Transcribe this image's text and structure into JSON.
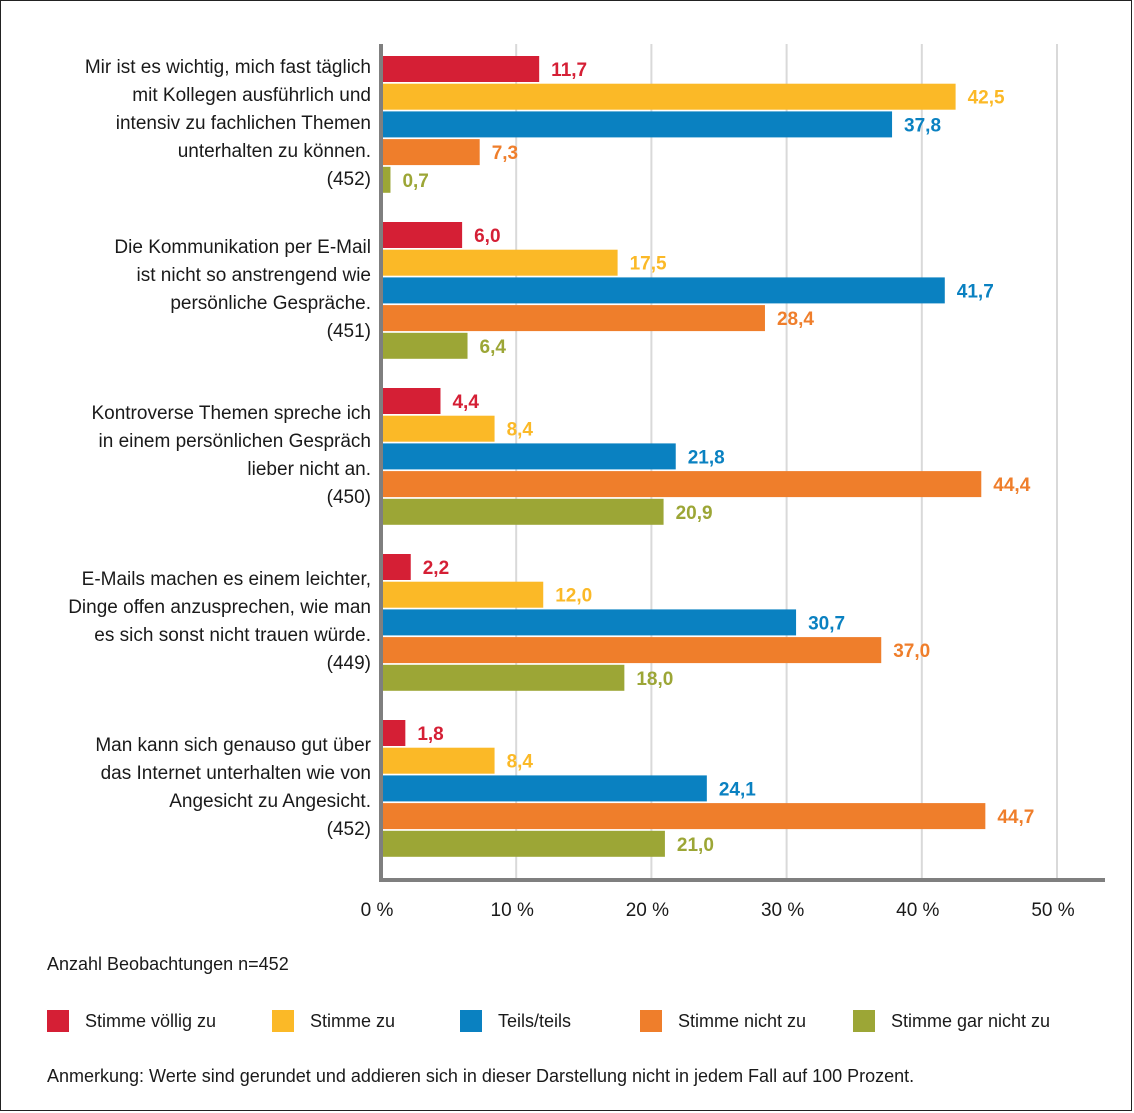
{
  "chart_data": {
    "type": "bar",
    "orientation": "horizontal",
    "categories": [
      {
        "text": "Mir ist es wichtig, mich fast täglich\nmit Kollegen ausführlich und\nintensiv zu fachlichen Themen\nunterhalten zu können.",
        "n": "(452)"
      },
      {
        "text": "Die Kommunikation per E-Mail\nist nicht so anstrengend wie\npersönliche Gespräche.",
        "n": "(451)"
      },
      {
        "text": "Kontroverse Themen spreche ich\nin einem persönlichen Gespräch\nlieber nicht an.",
        "n": "(450)"
      },
      {
        "text": "E-Mails machen es einem leichter,\nDinge offen anzusprechen, wie man\nes sich sonst nicht trauen würde.",
        "n": "(449)"
      },
      {
        "text": "Man kann sich genauso gut über\ndas Internet unterhalten wie von\nAngesicht zu Angesicht.",
        "n": "(452)"
      }
    ],
    "series": [
      {
        "name": "Stimme völlig zu",
        "color": "#d51f35",
        "values": [
          11.7,
          6.0,
          4.4,
          2.2,
          1.8
        ],
        "labels": [
          "11,7",
          "6,0",
          "4,4",
          "2,2",
          "1,8"
        ]
      },
      {
        "name": "Stimme zu",
        "color": "#fbb927",
        "values": [
          42.5,
          17.5,
          8.4,
          12.0,
          8.4
        ],
        "labels": [
          "42,5",
          "17,5",
          "8,4",
          "12,0",
          "8,4"
        ]
      },
      {
        "name": "Teils/teils",
        "color": "#0a81c1",
        "values": [
          37.8,
          41.7,
          21.8,
          30.7,
          24.1
        ],
        "labels": [
          "37,8",
          "41,7",
          "21,8",
          "30,7",
          "24,1"
        ]
      },
      {
        "name": "Stimme nicht zu",
        "color": "#ef7e2b",
        "values": [
          7.3,
          28.4,
          44.4,
          37.0,
          44.7
        ],
        "labels": [
          "7,3",
          "28,4",
          "44,4",
          "37,0",
          "44,7"
        ]
      },
      {
        "name": "Stimme gar nicht zu",
        "color": "#9ca636",
        "values": [
          0.7,
          6.4,
          20.9,
          18.0,
          21.0
        ],
        "labels": [
          "0,7",
          "6,4",
          "20,9",
          "18,0",
          "21,0"
        ]
      }
    ],
    "xlim": [
      0,
      53
    ],
    "xticks": [
      0,
      10,
      20,
      30,
      40,
      50
    ],
    "xtick_labels": [
      "0 %",
      "10 %",
      "20 %",
      "30 %",
      "40 %",
      "50  %"
    ],
    "grid": true,
    "legend_position": "bottom"
  },
  "notes": {
    "observations": "Anzahl Beobachtungen n=452",
    "remark": "Anmerkung: Werte sind gerundet und addieren sich in dieser Darstellung nicht in jedem Fall auf 100 Prozent."
  }
}
